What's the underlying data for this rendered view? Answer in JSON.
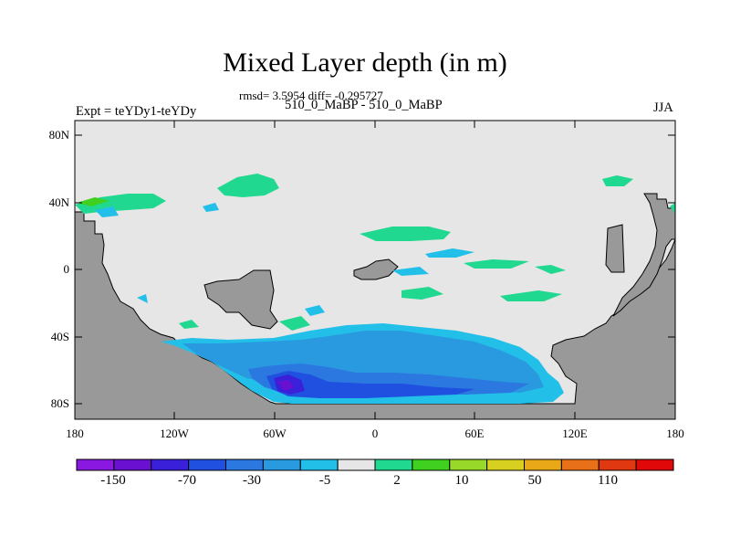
{
  "title": "Mixed Layer depth (in m)",
  "stats_line": "rmsd= 3.5954 diff= -0.295727",
  "subtitle": "510_0_MaBP - 510_0_MaBP",
  "experiment_label": "Expt = teYDy1-teYDy",
  "season_label": "JJA",
  "axes": {
    "lat_ticks": [
      "80N",
      "40N",
      "0",
      "40S",
      "80S"
    ],
    "lon_ticks": [
      "180",
      "120W",
      "60W",
      "0",
      "60E",
      "120E",
      "180"
    ]
  },
  "colorbar": {
    "labels": [
      "-150",
      "-70",
      "-30",
      "-5",
      "2",
      "10",
      "50",
      "110"
    ],
    "colors": [
      "#8a18e0",
      "#6a10d0",
      "#3a20d8",
      "#2050e0",
      "#2a78e0",
      "#2a9ae0",
      "#22c0e8",
      "#e6e6e6",
      "#20d890",
      "#40d020",
      "#98d828",
      "#d8d020",
      "#e8a818",
      "#e87018",
      "#e03810",
      "#e00808"
    ]
  },
  "colors": {
    "land": "#999999",
    "ocean": "#e6e6e6"
  }
}
